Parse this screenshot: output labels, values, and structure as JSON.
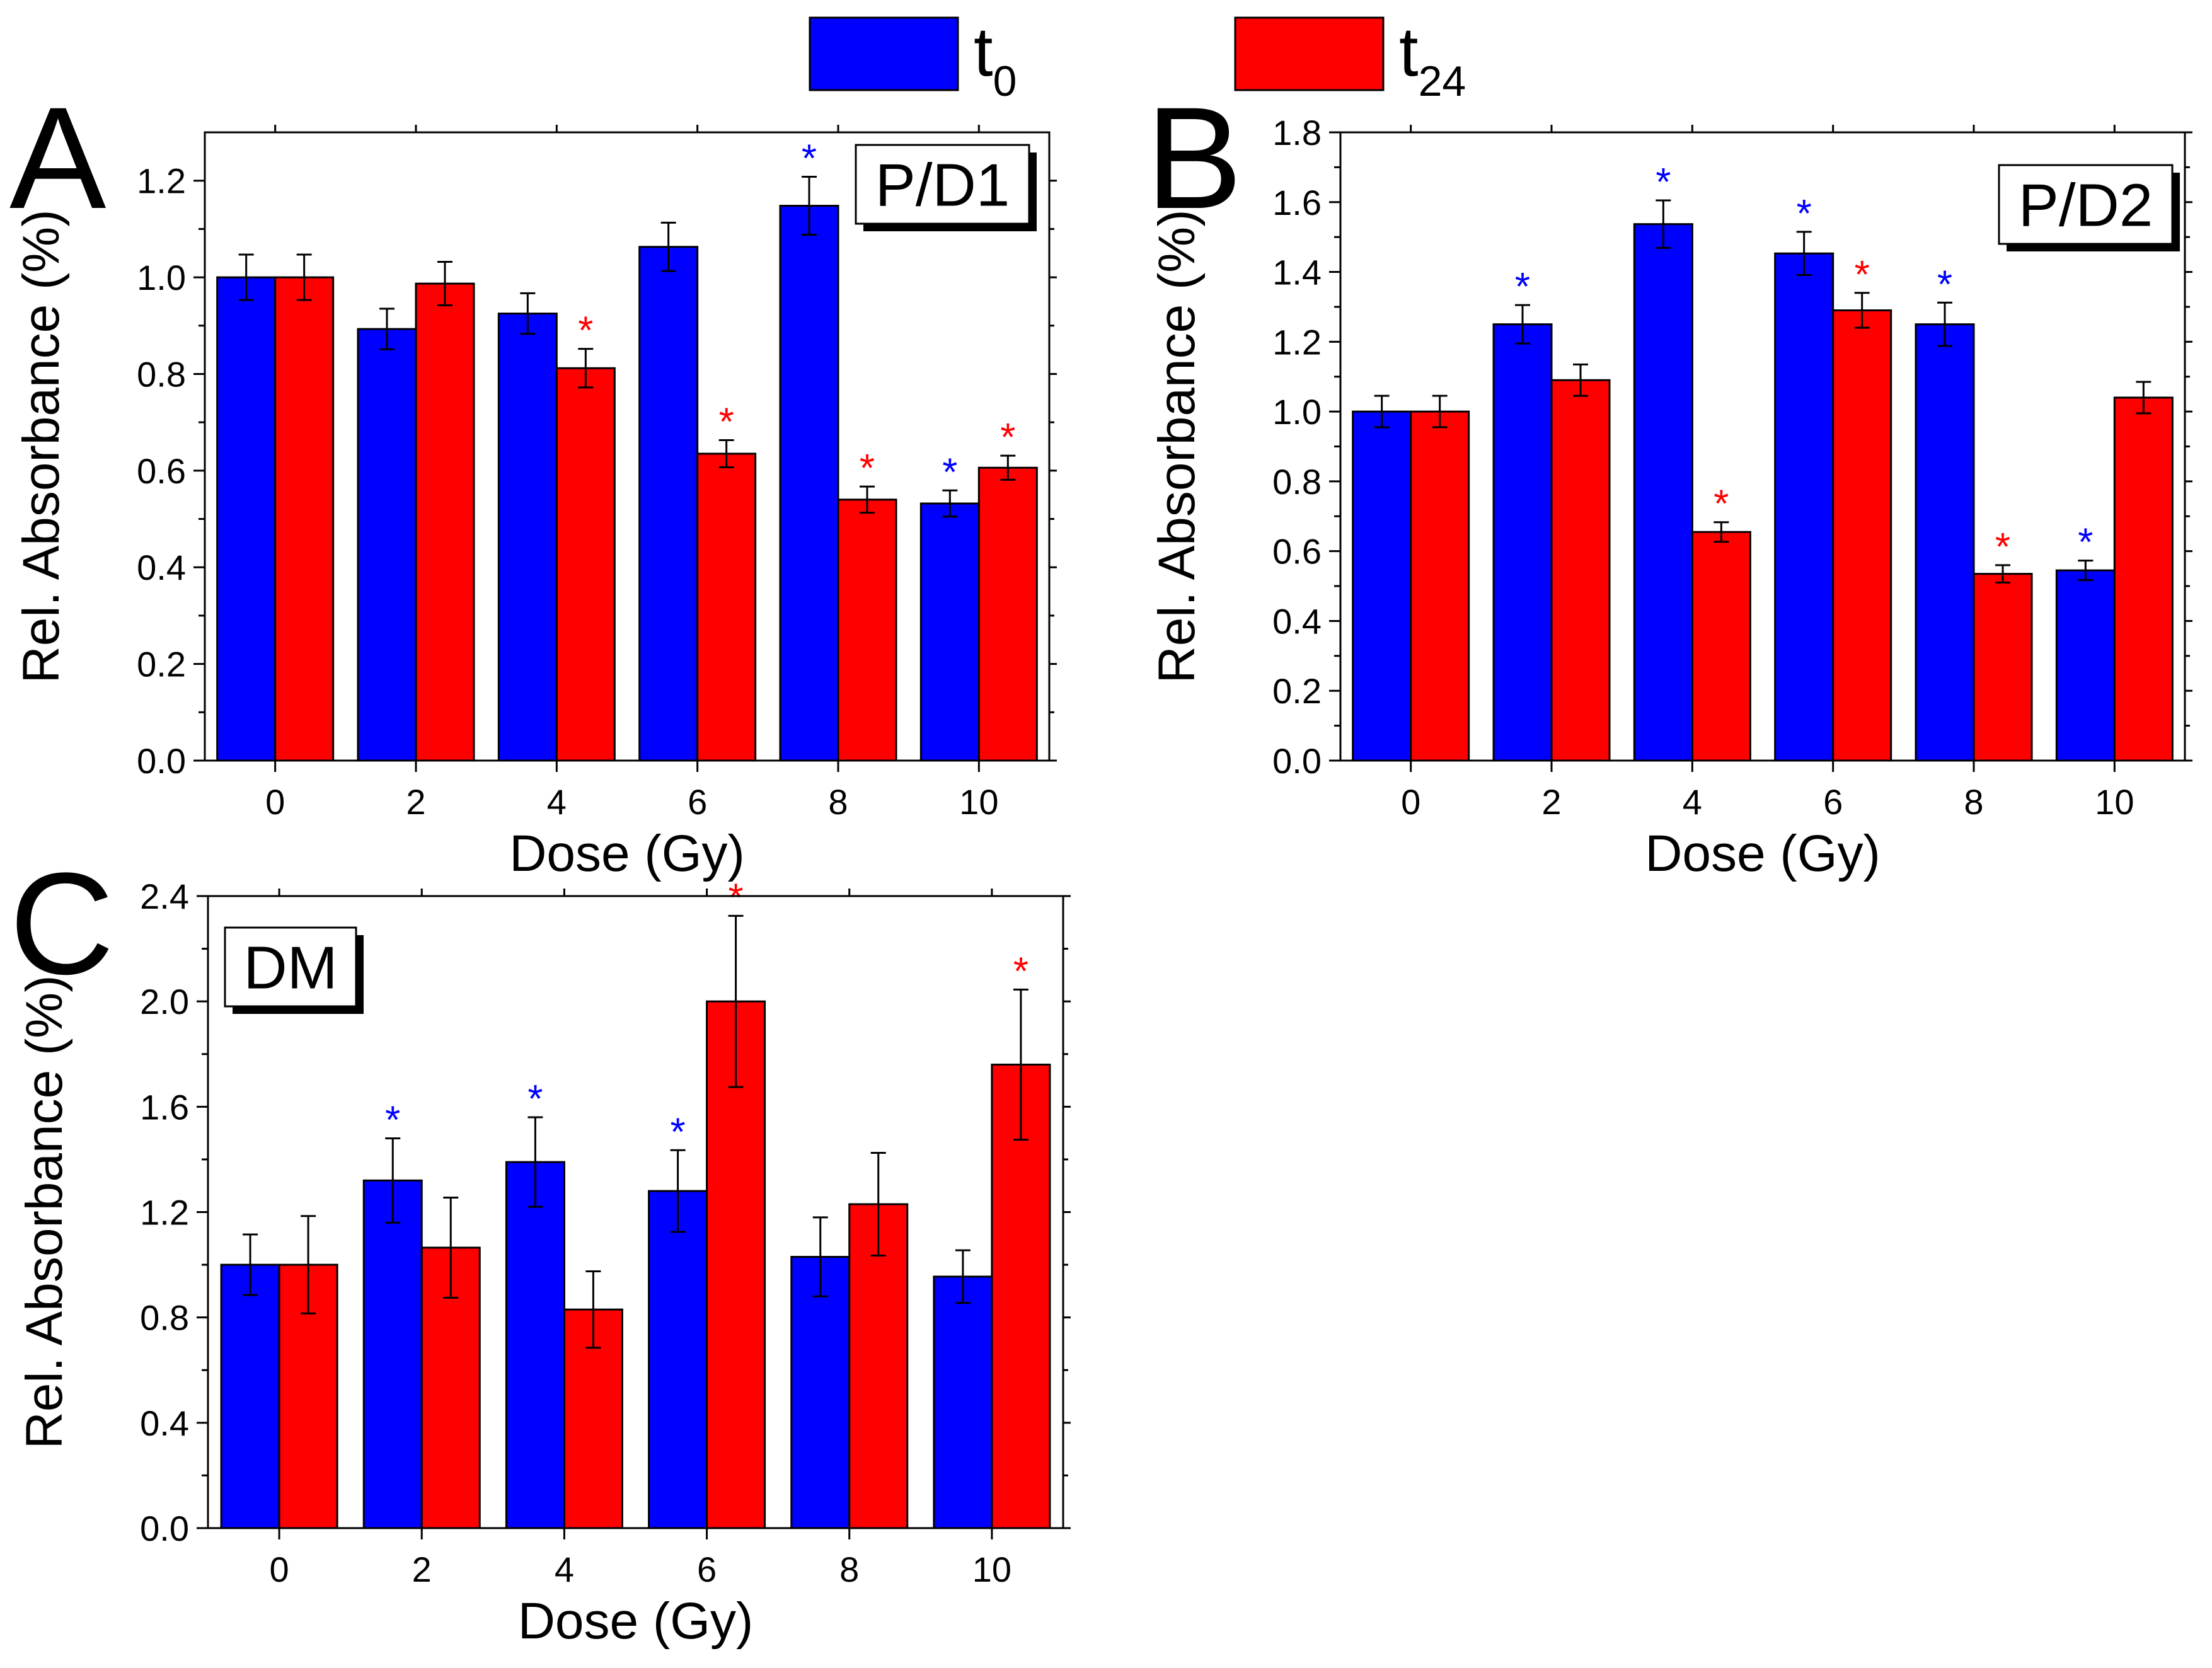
{
  "colors": {
    "t0": "#0000ff",
    "t24": "#ff0000",
    "axis": "#000000"
  },
  "legend": {
    "t0": {
      "main": "t",
      "sub": "0"
    },
    "t24": {
      "main": "t",
      "sub": "24"
    }
  },
  "chart_data": [
    {
      "panel": "A",
      "type": "bar",
      "title": "P/D1",
      "xlabel": "Dose (Gy)",
      "ylabel": "Rel. Absorbance (%)",
      "categories": [
        "0",
        "2",
        "4",
        "6",
        "8",
        "10"
      ],
      "ylim": [
        0,
        1.3
      ],
      "yticks": [
        0.0,
        0.2,
        0.4,
        0.6,
        0.8,
        1.0,
        1.2
      ],
      "ytick_labels": [
        "0.0",
        "0.2",
        "0.4",
        "0.6",
        "0.8",
        "1.0",
        "1.2"
      ],
      "series": [
        {
          "name": "t0",
          "values": [
            1.0,
            0.893,
            0.925,
            1.063,
            1.148,
            0.532
          ],
          "errors": [
            0.047,
            0.042,
            0.042,
            0.05,
            0.06,
            0.027
          ],
          "significant": [
            false,
            false,
            false,
            false,
            true,
            true
          ]
        },
        {
          "name": "t24",
          "values": [
            1.0,
            0.987,
            0.812,
            0.635,
            0.54,
            0.606
          ],
          "errors": [
            0.047,
            0.045,
            0.04,
            0.028,
            0.027,
            0.025
          ],
          "significant": [
            false,
            false,
            true,
            true,
            true,
            true
          ]
        }
      ]
    },
    {
      "panel": "B",
      "type": "bar",
      "title": "P/D2",
      "xlabel": "Dose (Gy)",
      "ylabel": "Rel. Absorbance (%)",
      "categories": [
        "0",
        "2",
        "4",
        "6",
        "8",
        "10"
      ],
      "ylim": [
        0,
        1.8
      ],
      "yticks": [
        0.0,
        0.2,
        0.4,
        0.6,
        0.8,
        1.0,
        1.2,
        1.4,
        1.6,
        1.8
      ],
      "ytick_labels": [
        "0.0",
        "0.2",
        "0.4",
        "0.6",
        "0.8",
        "1.0",
        "1.2",
        "1.4",
        "1.6",
        "1.8"
      ],
      "series": [
        {
          "name": "t0",
          "values": [
            1.0,
            1.25,
            1.537,
            1.453,
            1.25,
            0.545
          ],
          "errors": [
            0.045,
            0.055,
            0.068,
            0.062,
            0.062,
            0.028
          ],
          "significant": [
            false,
            true,
            true,
            true,
            true,
            true
          ]
        },
        {
          "name": "t24",
          "values": [
            1.0,
            1.09,
            0.655,
            1.29,
            0.535,
            1.04
          ],
          "errors": [
            0.045,
            0.045,
            0.028,
            0.05,
            0.025,
            0.045
          ],
          "significant": [
            false,
            false,
            true,
            true,
            true,
            false
          ]
        }
      ]
    },
    {
      "panel": "C",
      "type": "bar",
      "title": "DM",
      "xlabel": "Dose (Gy)",
      "ylabel": "Rel. Absorbance (%)",
      "categories": [
        "0",
        "2",
        "4",
        "6",
        "8",
        "10"
      ],
      "ylim": [
        0,
        2.4
      ],
      "yticks": [
        0.0,
        0.4,
        0.8,
        1.2,
        1.6,
        2.0,
        2.4
      ],
      "ytick_labels": [
        "0.0",
        "0.4",
        "0.8",
        "1.2",
        "1.6",
        "2.0",
        "2.4"
      ],
      "series": [
        {
          "name": "t0",
          "values": [
            1.0,
            1.32,
            1.39,
            1.28,
            1.03,
            0.955
          ],
          "errors": [
            0.115,
            0.16,
            0.17,
            0.155,
            0.15,
            0.1
          ],
          "significant": [
            false,
            true,
            true,
            true,
            false,
            false
          ]
        },
        {
          "name": "t24",
          "values": [
            1.0,
            1.065,
            0.83,
            2.0,
            1.23,
            1.76
          ],
          "errors": [
            0.185,
            0.19,
            0.145,
            0.325,
            0.195,
            0.285
          ],
          "significant": [
            false,
            false,
            false,
            true,
            false,
            true
          ]
        }
      ]
    }
  ]
}
